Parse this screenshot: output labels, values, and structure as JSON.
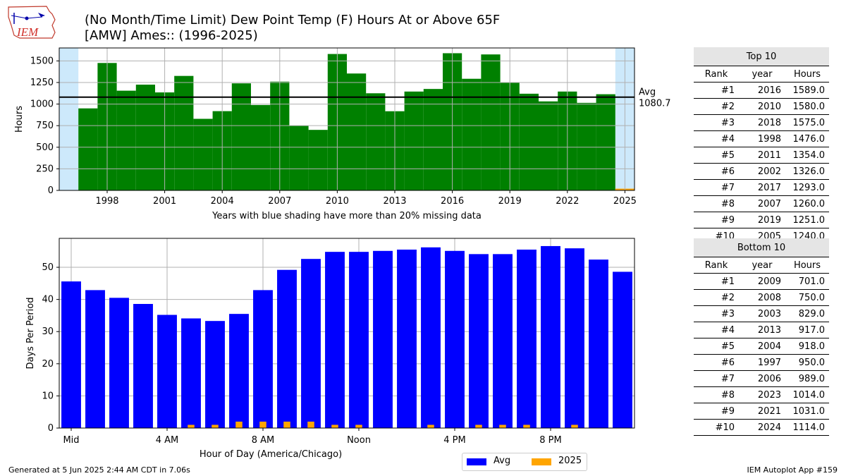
{
  "title": {
    "line1": "(No Month/Time Limit) Dew Point Temp (F) Hours At or Above 65F",
    "line2": "[AMW] Ames:: (1996-2025)"
  },
  "logo_text": "IEM",
  "colors": {
    "hours_bar": "#008000",
    "avg_bar": "#0000ff",
    "current_bar": "#ffa500",
    "missing_shade": "#cde9fb",
    "grid": "#b0b0b0"
  },
  "chart_data": [
    {
      "type": "bar",
      "name": "annual-hours",
      "x": [
        1996,
        1997,
        1998,
        1999,
        2000,
        2001,
        2002,
        2003,
        2004,
        2005,
        2006,
        2007,
        2008,
        2009,
        2010,
        2011,
        2012,
        2013,
        2014,
        2015,
        2016,
        2017,
        2018,
        2019,
        2020,
        2021,
        2022,
        2023,
        2024,
        2025
      ],
      "values": [
        0,
        950,
        1476,
        1155,
        1225,
        1135,
        1326,
        829,
        918,
        1240,
        989,
        1260,
        750,
        701,
        1580,
        1354,
        1125,
        917,
        1145,
        1175,
        1589,
        1293,
        1575,
        1251,
        1120,
        1031,
        1145,
        1014,
        1114,
        20
      ],
      "ylabel": "Hours",
      "xlabel": "Years with blue shading have more than 20% missing data",
      "ylim": [
        0,
        1650
      ],
      "xlim": [
        1995.5,
        2025.5
      ],
      "xticks": [
        1998,
        2001,
        2004,
        2007,
        2010,
        2013,
        2016,
        2019,
        2022,
        2025
      ],
      "yticks": [
        0,
        250,
        500,
        750,
        1000,
        1250,
        1500
      ],
      "shaded_years": [
        1996,
        2025
      ],
      "avg": {
        "value": 1080.7,
        "label": "Avg",
        "value_label": "1080.7"
      },
      "grid": true
    },
    {
      "type": "bar",
      "name": "hour-of-day",
      "categories": [
        0,
        1,
        2,
        3,
        4,
        5,
        6,
        7,
        8,
        9,
        10,
        11,
        12,
        13,
        14,
        15,
        16,
        17,
        18,
        19,
        20,
        21,
        22,
        23
      ],
      "series": [
        {
          "name": "Avg",
          "values": [
            45.6,
            42.9,
            40.5,
            38.6,
            35.2,
            34.1,
            33.3,
            35.5,
            42.9,
            49.2,
            52.6,
            54.8,
            54.8,
            55.1,
            55.5,
            56.2,
            55.1,
            54.1,
            54.1,
            55.5,
            56.6,
            55.9,
            52.4,
            48.6
          ]
        },
        {
          "name": "2025",
          "values": [
            0,
            0,
            0,
            0,
            0,
            1,
            1,
            2,
            2,
            2,
            2,
            1,
            1,
            0,
            0,
            1,
            0,
            1,
            1,
            1,
            0,
            1,
            0,
            0
          ]
        }
      ],
      "ylabel": "Days Per Period",
      "xlabel": "Hour of Day (America/Chicago)",
      "ylim": [
        0,
        59
      ],
      "yticks": [
        0,
        10,
        20,
        30,
        40,
        50
      ],
      "xticks": [
        {
          "hour": 0,
          "label": "Mid"
        },
        {
          "hour": 4,
          "label": "4 AM"
        },
        {
          "hour": 8,
          "label": "8 AM"
        },
        {
          "hour": 12,
          "label": "Noon"
        },
        {
          "hour": 16,
          "label": "4 PM"
        },
        {
          "hour": 20,
          "label": "8 PM"
        }
      ],
      "legend": "bottom-right",
      "grid": true
    }
  ],
  "top10": {
    "caption": "Top 10",
    "headers": [
      "Rank",
      "year",
      "Hours"
    ],
    "rows": [
      [
        "#1",
        "2016",
        "1589.0"
      ],
      [
        "#2",
        "2010",
        "1580.0"
      ],
      [
        "#3",
        "2018",
        "1575.0"
      ],
      [
        "#4",
        "1998",
        "1476.0"
      ],
      [
        "#5",
        "2011",
        "1354.0"
      ],
      [
        "#6",
        "2002",
        "1326.0"
      ],
      [
        "#7",
        "2017",
        "1293.0"
      ],
      [
        "#8",
        "2007",
        "1260.0"
      ],
      [
        "#9",
        "2019",
        "1251.0"
      ],
      [
        "#10",
        "2005",
        "1240.0"
      ]
    ]
  },
  "bottom10": {
    "caption": "Bottom 10",
    "headers": [
      "Rank",
      "year",
      "Hours"
    ],
    "rows": [
      [
        "#1",
        "2009",
        "701.0"
      ],
      [
        "#2",
        "2008",
        "750.0"
      ],
      [
        "#3",
        "2003",
        "829.0"
      ],
      [
        "#4",
        "2013",
        "917.0"
      ],
      [
        "#5",
        "2004",
        "918.0"
      ],
      [
        "#6",
        "1997",
        "950.0"
      ],
      [
        "#7",
        "2006",
        "989.0"
      ],
      [
        "#8",
        "2023",
        "1014.0"
      ],
      [
        "#9",
        "2021",
        "1031.0"
      ],
      [
        "#10",
        "2024",
        "1114.0"
      ]
    ]
  },
  "footer": {
    "left": "Generated at 5 Jun 2025 2:44 AM CDT in 7.06s",
    "right": "IEM Autoplot App #159"
  }
}
